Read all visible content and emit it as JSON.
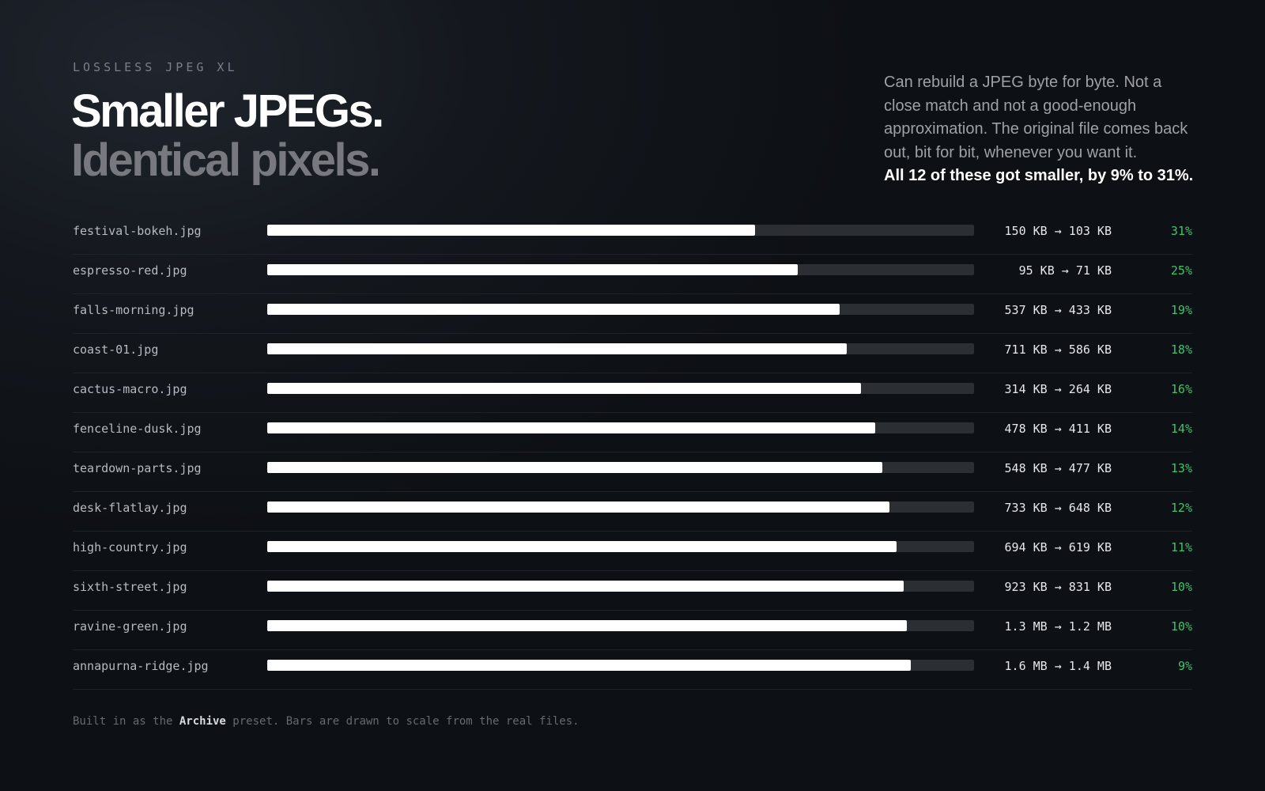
{
  "header": {
    "eyebrow": "LOSSLESS JPEG XL",
    "title_line1": "Smaller JPEGs.",
    "title_line2": "Identical pixels.",
    "blurb": "Can rebuild a JPEG byte for byte. Not a close match and not a good-enough approximation. The original file comes back out, bit for bit, whenever you want it.",
    "blurb_emphasis": "All 12 of these got smaller, by 9% to 31%."
  },
  "footnote": {
    "before": "Built in as the ",
    "preset": "Archive",
    "after": " preset. Bars are drawn to scale from the real files."
  },
  "colors": {
    "bar_fill": "#ffffff",
    "bar_track": "#2b2e33",
    "percent": "#3ec46d",
    "background": "#0d1014"
  },
  "chart_data": {
    "type": "bar",
    "orientation": "horizontal",
    "value_meaning": "compressed size as fraction of original",
    "categories": [
      "festival-bokeh.jpg",
      "espresso-red.jpg",
      "falls-morning.jpg",
      "coast-01.jpg",
      "cactus-macro.jpg",
      "fenceline-dusk.jpg",
      "teardown-parts.jpg",
      "desk-flatlay.jpg",
      "high-country.jpg",
      "sixth-street.jpg",
      "ravine-green.jpg",
      "annapurna-ridge.jpg"
    ],
    "values": [
      0.69,
      0.75,
      0.81,
      0.82,
      0.84,
      0.86,
      0.87,
      0.88,
      0.89,
      0.9,
      0.905,
      0.91
    ],
    "size_labels": [
      "150 KB → 103 KB",
      "95 KB → 71 KB",
      "537 KB → 433 KB",
      "711 KB → 586 KB",
      "314 KB → 264 KB",
      "478 KB → 411 KB",
      "548 KB → 477 KB",
      "733 KB → 648 KB",
      "694 KB → 619 KB",
      "923 KB → 831 KB",
      "1.3 MB → 1.2 MB",
      "1.6 MB → 1.4 MB"
    ],
    "percent_labels": [
      "31%",
      "25%",
      "19%",
      "18%",
      "16%",
      "14%",
      "13%",
      "12%",
      "11%",
      "10%",
      "10%",
      "9%"
    ],
    "xlim": [
      0,
      1
    ],
    "grid": false,
    "legend": "none"
  }
}
